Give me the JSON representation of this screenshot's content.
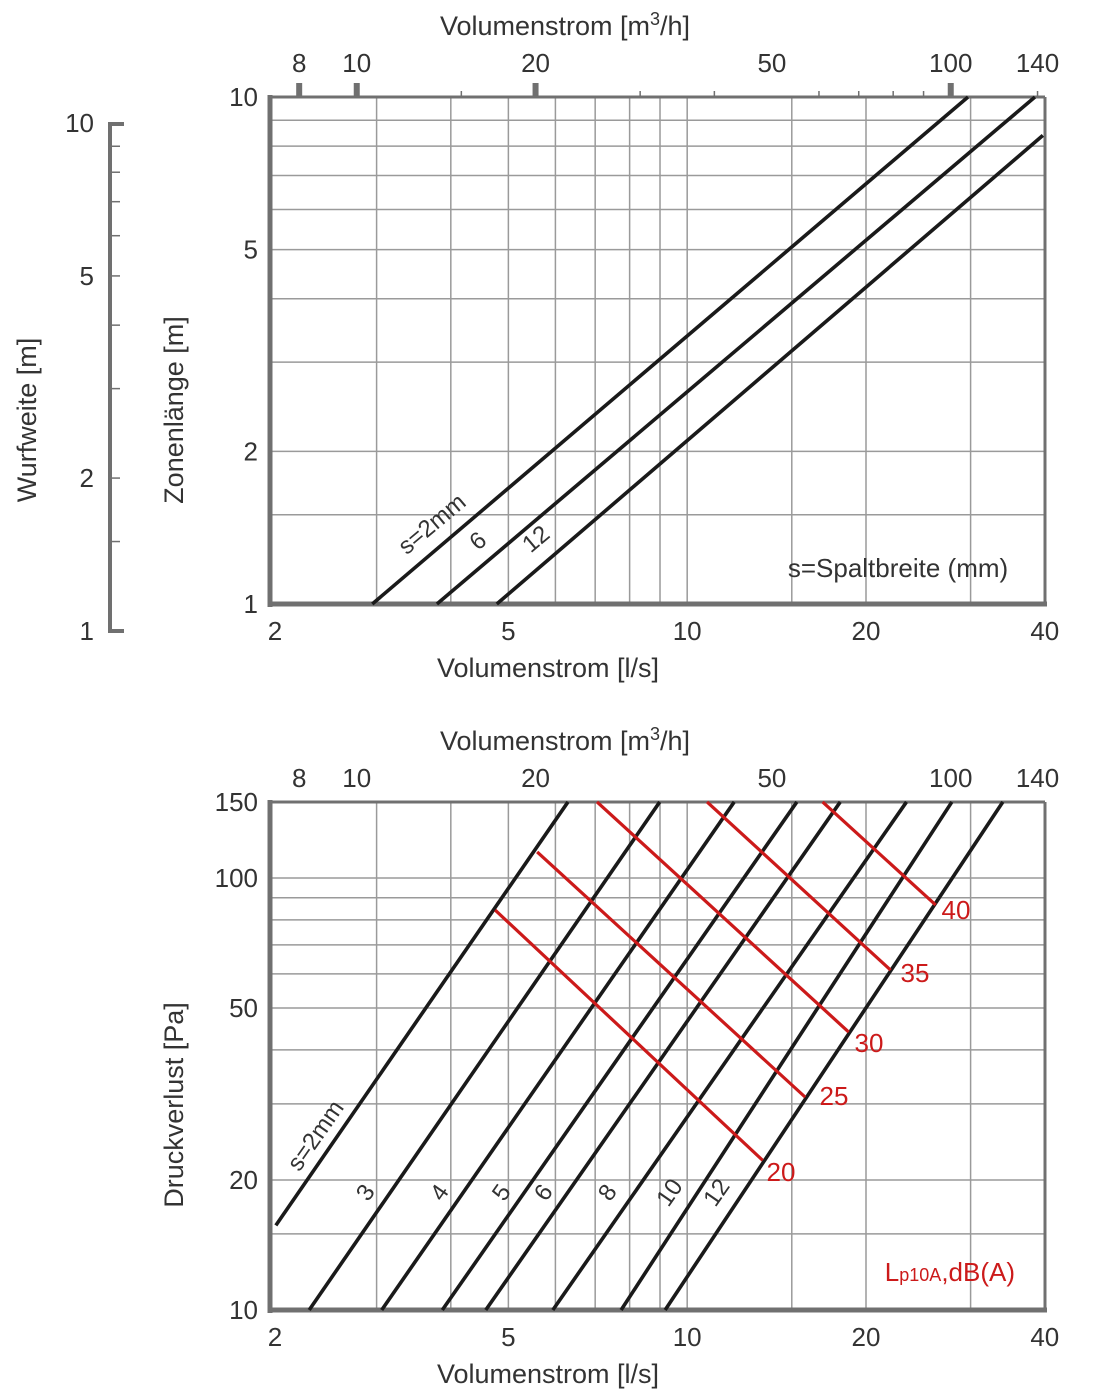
{
  "chart_data": [
    {
      "type": "line",
      "title": "",
      "xlabel": "Volumenstrom  [l/s]",
      "x2label_pre": "Volumenstrom  [m",
      "x2label_sup": "3",
      "x2label_post": "/h]",
      "ylabel": "Zonenlänge  [m]",
      "y2label": "Wurfweite  [m]",
      "xscale": "log",
      "yscale": "log",
      "xlim": [
        2,
        40
      ],
      "ylim": [
        1,
        10
      ],
      "xticks": [
        {
          "v": 2,
          "label": "2"
        },
        {
          "v": 5,
          "label": "5"
        },
        {
          "v": 10,
          "label": "10"
        },
        {
          "v": 20,
          "label": "20"
        },
        {
          "v": 40,
          "label": "40"
        }
      ],
      "x2ticks": [
        {
          "v": 8,
          "label": "8"
        },
        {
          "v": 10,
          "label": "10"
        },
        {
          "v": 20,
          "label": "20"
        },
        {
          "v": 50,
          "label": "50"
        },
        {
          "v": 100,
          "label": "100"
        },
        {
          "v": 140,
          "label": "140"
        }
      ],
      "yticks": [
        {
          "v": 1,
          "label": "1"
        },
        {
          "v": 2,
          "label": "2"
        },
        {
          "v": 5,
          "label": "5"
        },
        {
          "v": 10,
          "label": "10"
        }
      ],
      "y2ticks": [
        {
          "v": 1,
          "label": "1"
        },
        {
          "v": 2,
          "label": "2"
        },
        {
          "v": 5,
          "label": "5"
        },
        {
          "v": 10,
          "label": "10"
        }
      ],
      "xgrid": [
        3,
        4,
        5,
        6,
        7,
        8,
        9,
        10,
        15,
        20,
        30
      ],
      "ygrid": [
        1.5,
        2,
        3,
        4,
        5,
        6,
        7,
        8,
        9
      ],
      "grid": true,
      "annotation": "s=Spaltbreite (mm)",
      "series": [
        {
          "name": "s=2mm",
          "label": "s=2mm",
          "points": [
            [
              2.95,
              1
            ],
            [
              29.7,
              10
            ]
          ]
        },
        {
          "name": "6",
          "label": "6",
          "points": [
            [
              3.79,
              1
            ],
            [
              38.5,
              10
            ]
          ]
        },
        {
          "name": "12",
          "label": "12",
          "points": [
            [
              4.78,
              1
            ],
            [
              39.7,
              8.4
            ]
          ]
        }
      ]
    },
    {
      "type": "line",
      "title": "",
      "xlabel": "Volumenstrom  [l/s]",
      "x2label_pre": "Volumenstrom  [m",
      "x2label_sup": "3",
      "x2label_post": "/h]",
      "ylabel": "Druckverlust  [Pa]",
      "xscale": "log",
      "yscale": "log",
      "xlim": [
        2,
        40
      ],
      "ylim": [
        10,
        150
      ],
      "xticks": [
        {
          "v": 2,
          "label": "2"
        },
        {
          "v": 5,
          "label": "5"
        },
        {
          "v": 10,
          "label": "10"
        },
        {
          "v": 20,
          "label": "20"
        },
        {
          "v": 40,
          "label": "40"
        }
      ],
      "x2ticks": [
        {
          "v": 8,
          "label": "8"
        },
        {
          "v": 10,
          "label": "10"
        },
        {
          "v": 20,
          "label": "20"
        },
        {
          "v": 50,
          "label": "50"
        },
        {
          "v": 100,
          "label": "100"
        },
        {
          "v": 140,
          "label": "140"
        }
      ],
      "yticks": [
        {
          "v": 10,
          "label": "10"
        },
        {
          "v": 20,
          "label": "20"
        },
        {
          "v": 50,
          "label": "50"
        },
        {
          "v": 100,
          "label": "100"
        },
        {
          "v": 150,
          "label": "150"
        }
      ],
      "xgrid": [
        3,
        4,
        5,
        6,
        7,
        8,
        9,
        10,
        15,
        20,
        30
      ],
      "ygrid": [
        15,
        20,
        30,
        40,
        50,
        60,
        70,
        80,
        90,
        100
      ],
      "grid": true,
      "annotation_main": "L",
      "annotation_sub": "p10A",
      "annotation_post": ",dB(A)",
      "series": [
        {
          "name": "s=2mm",
          "label": "s=2mm",
          "points": [
            [
              2.03,
              15.7
            ],
            [
              6.3,
              150
            ]
          ]
        },
        {
          "name": "3",
          "label": "3",
          "points": [
            [
              2.31,
              10
            ],
            [
              8.99,
              150
            ]
          ]
        },
        {
          "name": "4",
          "label": "4",
          "points": [
            [
              3.06,
              10
            ],
            [
              12.0,
              150
            ]
          ]
        },
        {
          "name": "5",
          "label": "5",
          "points": [
            [
              3.87,
              10
            ],
            [
              15.3,
              150
            ]
          ]
        },
        {
          "name": "6",
          "label": "6",
          "points": [
            [
              4.58,
              10
            ],
            [
              18.1,
              150
            ]
          ]
        },
        {
          "name": "8",
          "label": "8",
          "points": [
            [
              5.94,
              10
            ],
            [
              23.4,
              150
            ]
          ]
        },
        {
          "name": "10",
          "label": "10",
          "points": [
            [
              7.74,
              10
            ],
            [
              27.9,
              150
            ]
          ]
        },
        {
          "name": "12",
          "label": "12",
          "points": [
            [
              9.18,
              10
            ],
            [
              34.0,
              150
            ]
          ]
        }
      ],
      "sound_lines": [
        {
          "name": "Lp 20",
          "label": "20",
          "points": [
            [
              4.75,
              84.3
            ],
            [
              13.4,
              22.2
            ]
          ]
        },
        {
          "name": "Lp 25",
          "label": "25",
          "points": [
            [
              5.59,
              114.9
            ],
            [
              15.8,
              31.1
            ]
          ]
        },
        {
          "name": "Lp 30",
          "label": "30",
          "points": [
            [
              7.05,
              150
            ],
            [
              18.7,
              44.0
            ]
          ]
        },
        {
          "name": "Lp 35",
          "label": "35",
          "points": [
            [
              10.8,
              150
            ],
            [
              22.0,
              61.2
            ]
          ]
        },
        {
          "name": "Lp 40",
          "label": "40",
          "points": [
            [
              16.9,
              150
            ],
            [
              26.2,
              86.6
            ]
          ]
        }
      ],
      "colors": {
        "series": "#1a1a1a",
        "sound_lines": "#cc1a1a",
        "axis": "#707070"
      }
    }
  ]
}
